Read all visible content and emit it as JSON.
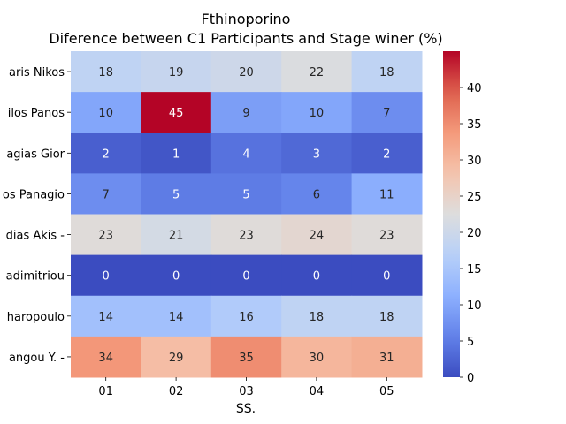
{
  "chart_data": {
    "type": "heatmap",
    "title": "Fthinoporino",
    "subtitle": "Diference between C1 Participants and Stage winer (%)",
    "xlabel": "SS.",
    "ylabel": "",
    "x_categories": [
      "01",
      "02",
      "03",
      "04",
      "05"
    ],
    "y_categories": [
      "aris Nikos ",
      "ilos Panos",
      "agias Gior",
      "os Panagio",
      "dias Akis  -",
      "adimitriou",
      "haropoulo",
      "angou Y.  -"
    ],
    "values": [
      [
        18,
        19,
        20,
        22,
        18
      ],
      [
        10,
        45,
        9,
        10,
        7
      ],
      [
        2,
        1,
        4,
        3,
        2
      ],
      [
        7,
        5,
        5,
        6,
        11
      ],
      [
        23,
        21,
        23,
        24,
        23
      ],
      [
        0,
        0,
        0,
        0,
        0
      ],
      [
        14,
        14,
        16,
        18,
        18
      ],
      [
        34,
        29,
        35,
        30,
        31
      ]
    ],
    "colormap": "coolwarm",
    "vmin": 0,
    "vmax": 45,
    "colorbar_ticks": [
      0,
      5,
      10,
      15,
      20,
      25,
      30,
      35,
      40
    ],
    "annotated": true
  }
}
